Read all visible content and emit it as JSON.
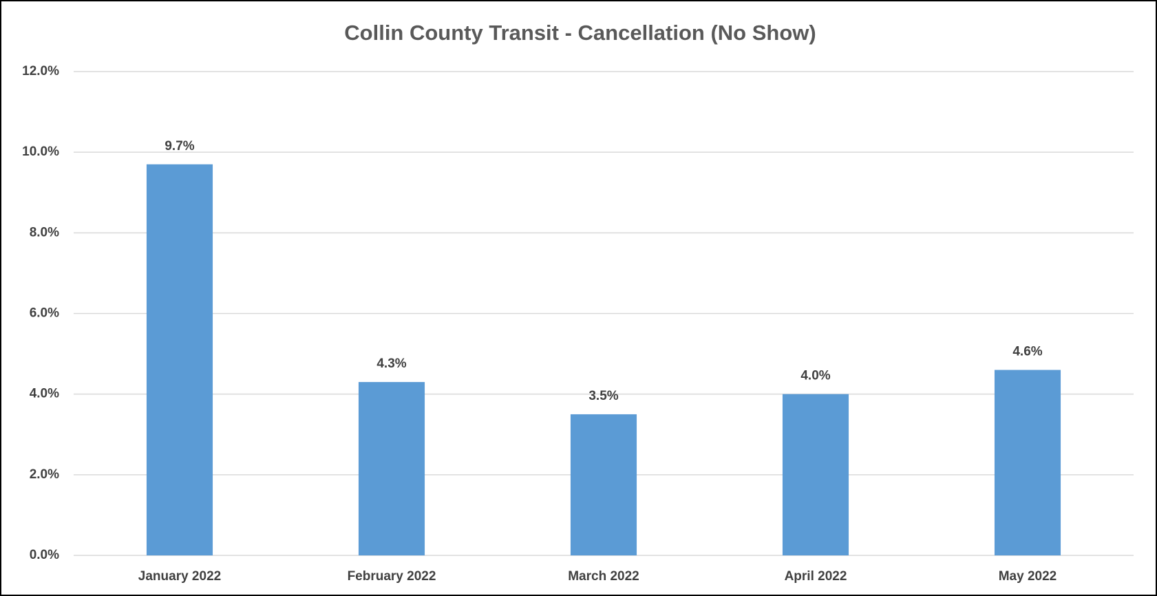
{
  "chart_data": {
    "type": "bar",
    "title": "Collin County Transit - Cancellation (No Show)",
    "categories": [
      "January 2022",
      "February 2022",
      "March 2022",
      "April 2022",
      "May 2022"
    ],
    "values": [
      9.7,
      4.3,
      3.5,
      4.0,
      4.6
    ],
    "value_labels": [
      "9.7%",
      "4.3%",
      "3.5%",
      "4.0%",
      "4.6%"
    ],
    "color": "#5b9bd5",
    "ylim": [
      0,
      12
    ],
    "yticks": [
      {
        "value": 0,
        "label": "0.0%"
      },
      {
        "value": 2,
        "label": "2.0%"
      },
      {
        "value": 4,
        "label": "4.0%"
      },
      {
        "value": 6,
        "label": "6.0%"
      },
      {
        "value": 8,
        "label": "8.0%"
      },
      {
        "value": 10,
        "label": "10.0%"
      },
      {
        "value": 12,
        "label": "12.0%"
      }
    ],
    "grid": true
  }
}
